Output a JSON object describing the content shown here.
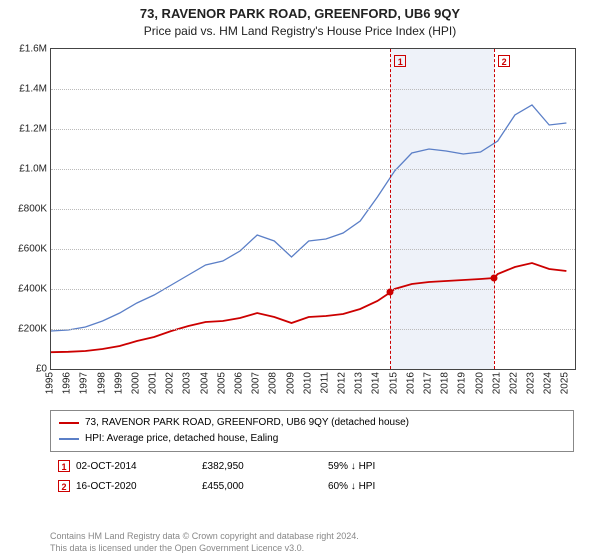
{
  "title": "73, RAVENOR PARK ROAD, GREENFORD, UB6 9QY",
  "subtitle": "Price paid vs. HM Land Registry's House Price Index (HPI)",
  "chart": {
    "type": "line",
    "xlim": [
      1995,
      2025.5
    ],
    "ylim": [
      0,
      1600000
    ],
    "ytick_step": 200000,
    "yticks_labels": [
      "£0",
      "£200K",
      "£400K",
      "£600K",
      "£800K",
      "£1.0M",
      "£1.2M",
      "£1.4M",
      "£1.6M"
    ],
    "xticks": [
      1995,
      1996,
      1997,
      1998,
      1999,
      2000,
      2001,
      2002,
      2003,
      2004,
      2005,
      2006,
      2007,
      2008,
      2009,
      2010,
      2011,
      2012,
      2013,
      2014,
      2015,
      2016,
      2017,
      2018,
      2019,
      2020,
      2021,
      2022,
      2023,
      2024,
      2025
    ],
    "grid_color": "#bbbbbb",
    "background_color": "#ffffff",
    "border_color": "#444444",
    "line_fontsize": 10,
    "highlight_band": {
      "from": 2014.75,
      "to": 2020.79,
      "fill": "#eef2f9"
    },
    "markers": [
      {
        "id": "1",
        "x": 2014.75,
        "color": "#cc0000"
      },
      {
        "id": "2",
        "x": 2020.79,
        "color": "#cc0000"
      }
    ],
    "series": [
      {
        "name": "73, RAVENOR PARK ROAD, GREENFORD, UB6 9QY (detached house)",
        "color": "#cc0000",
        "width": 1.8,
        "data": [
          [
            1995,
            84000
          ],
          [
            1996,
            86000
          ],
          [
            1997,
            90000
          ],
          [
            1998,
            100000
          ],
          [
            1999,
            115000
          ],
          [
            2000,
            140000
          ],
          [
            2001,
            160000
          ],
          [
            2002,
            190000
          ],
          [
            2003,
            215000
          ],
          [
            2004,
            235000
          ],
          [
            2005,
            240000
          ],
          [
            2006,
            255000
          ],
          [
            2007,
            280000
          ],
          [
            2008,
            260000
          ],
          [
            2009,
            230000
          ],
          [
            2010,
            260000
          ],
          [
            2011,
            265000
          ],
          [
            2012,
            275000
          ],
          [
            2013,
            300000
          ],
          [
            2014,
            340000
          ],
          [
            2014.75,
            382950
          ],
          [
            2015,
            400000
          ],
          [
            2016,
            425000
          ],
          [
            2017,
            435000
          ],
          [
            2018,
            440000
          ],
          [
            2019,
            445000
          ],
          [
            2020,
            450000
          ],
          [
            2020.79,
            455000
          ],
          [
            2021,
            475000
          ],
          [
            2022,
            510000
          ],
          [
            2023,
            530000
          ],
          [
            2024,
            500000
          ],
          [
            2025,
            490000
          ]
        ]
      },
      {
        "name": "HPI: Average price, detached house, Ealing",
        "color": "#5b7fc7",
        "width": 1.3,
        "data": [
          [
            1995,
            190000
          ],
          [
            1996,
            195000
          ],
          [
            1997,
            210000
          ],
          [
            1998,
            240000
          ],
          [
            1999,
            280000
          ],
          [
            2000,
            330000
          ],
          [
            2001,
            370000
          ],
          [
            2002,
            420000
          ],
          [
            2003,
            470000
          ],
          [
            2004,
            520000
          ],
          [
            2005,
            540000
          ],
          [
            2006,
            590000
          ],
          [
            2007,
            670000
          ],
          [
            2008,
            640000
          ],
          [
            2009,
            560000
          ],
          [
            2010,
            640000
          ],
          [
            2011,
            650000
          ],
          [
            2012,
            680000
          ],
          [
            2013,
            740000
          ],
          [
            2014,
            860000
          ],
          [
            2015,
            990000
          ],
          [
            2016,
            1080000
          ],
          [
            2017,
            1100000
          ],
          [
            2018,
            1090000
          ],
          [
            2019,
            1075000
          ],
          [
            2020,
            1085000
          ],
          [
            2021,
            1140000
          ],
          [
            2022,
            1270000
          ],
          [
            2023,
            1320000
          ],
          [
            2024,
            1220000
          ],
          [
            2025,
            1230000
          ]
        ]
      }
    ],
    "sale_points": [
      {
        "x": 2014.75,
        "y": 382950,
        "color": "#cc0000"
      },
      {
        "x": 2020.79,
        "y": 455000,
        "color": "#cc0000"
      }
    ]
  },
  "legend": {
    "series1_label": "73, RAVENOR PARK ROAD, GREENFORD, UB6 9QY (detached house)",
    "series2_label": "HPI: Average price, detached house, Ealing",
    "series1_color": "#cc0000",
    "series2_color": "#5b7fc7"
  },
  "sales": [
    {
      "marker": "1",
      "color": "#cc0000",
      "date": "02-OCT-2014",
      "price": "£382,950",
      "vs_hpi": "59% ↓ HPI"
    },
    {
      "marker": "2",
      "color": "#cc0000",
      "date": "16-OCT-2020",
      "price": "£455,000",
      "vs_hpi": "60% ↓ HPI"
    }
  ],
  "footer": {
    "line1": "Contains HM Land Registry data © Crown copyright and database right 2024.",
    "line2": "This data is licensed under the Open Government Licence v3.0."
  }
}
